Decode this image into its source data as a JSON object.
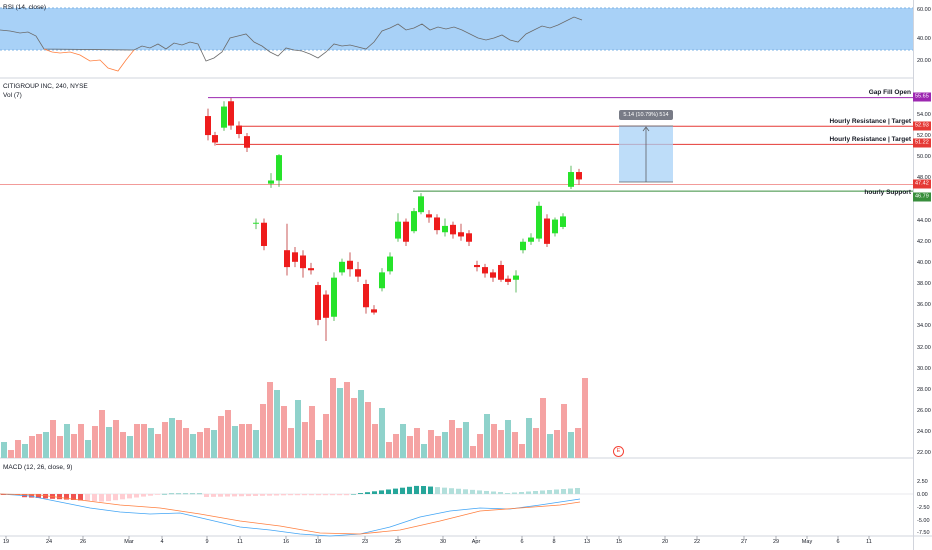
{
  "rsi_pane": {
    "title": "RSI (14, close)",
    "axis_labels": [
      "60.00",
      "40.00",
      "20.00"
    ]
  },
  "price_pane": {
    "symbol_title": "CITIGROUP INC, 240, NYSE",
    "volume_label": "Vol (7)",
    "axis_labels": [
      "54.00",
      "52.00",
      "50.00",
      "48.00",
      "46.00",
      "44.00",
      "42.00",
      "40.00",
      "38.00",
      "36.00",
      "34.00",
      "32.00",
      "30.00",
      "28.00",
      "26.00",
      "24.00",
      "22.00"
    ],
    "lines": [
      {
        "label": "Gap Fill Open",
        "value": 55.65,
        "tag": "55.65",
        "color": "#9c27b0"
      },
      {
        "label": "Hourly Resistance | Target",
        "value": 52.93,
        "tag": "52.93",
        "color": "#e53935"
      },
      {
        "label": "Hourly Resistance | Target",
        "value": 51.22,
        "tag": "51.22",
        "color": "#e53935"
      },
      {
        "label": "",
        "value": 47.42,
        "tag": "47.42",
        "color": "#e53935"
      },
      {
        "label": "hourly Support",
        "value": 46.79,
        "tag": "46.79",
        "color": "#388e3c"
      }
    ],
    "measure_label": "5.14 (10.79%) 514",
    "earnings_badge": "E"
  },
  "macd_pane": {
    "title": "MACD (12, 26, close, 9)",
    "axis_labels": [
      "2.50",
      "0.00",
      "-2.50",
      "-5.00",
      "-7.50"
    ]
  },
  "time_axis": {
    "labels": [
      "19",
      "24",
      "26",
      "Mar",
      "4",
      "9",
      "11",
      "16",
      "18",
      "23",
      "25",
      "30",
      "Apr",
      "6",
      "8",
      "13",
      "15",
      "20",
      "22",
      "27",
      "29",
      "May",
      "6",
      "11"
    ]
  },
  "colors": {
    "up": "#26e32a",
    "down": "#ee1c1c",
    "vol_up": "#8fd2cb",
    "vol_down": "#f5a3a3",
    "rsi_band": "#a8d1f7",
    "rsi_line": "#6b6b6b",
    "macd_line": "#42a5f5",
    "signal_line": "#ff7f3f"
  }
}
